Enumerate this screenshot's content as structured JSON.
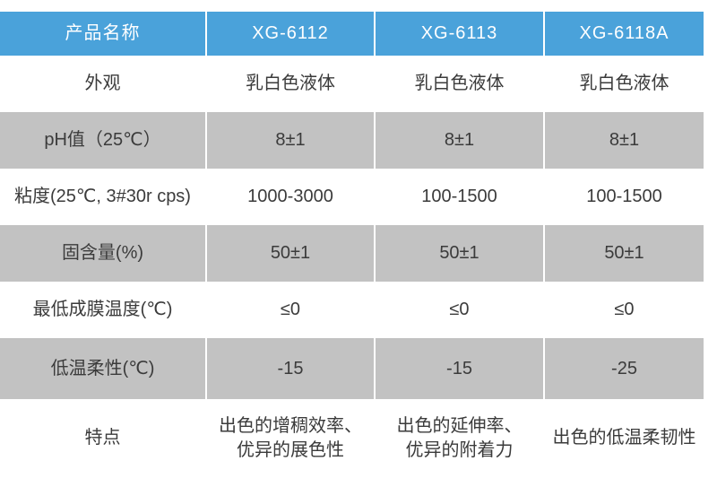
{
  "colors": {
    "header_bg": "#4aa2da",
    "header_text": "#ffffff",
    "shaded_row_bg": "#c2c2c2",
    "plain_row_bg": "#ffffff",
    "body_text": "#3b3b3b"
  },
  "table": {
    "header": {
      "label": "产品名称",
      "products": [
        "XG-6112",
        "XG-6113",
        "XG-6118A"
      ]
    },
    "rows": [
      {
        "label": "外观",
        "values": [
          "乳白色液体",
          "乳白色液体",
          "乳白色液体"
        ]
      },
      {
        "label": "pH值（25℃）",
        "values": [
          "8±1",
          "8±1",
          "8±1"
        ]
      },
      {
        "label": "粘度(25℃, 3#30r cps)",
        "values": [
          "1000-3000",
          "100-1500",
          "100-1500"
        ]
      },
      {
        "label": "固含量(%)",
        "values": [
          "50±1",
          "50±1",
          "50±1"
        ]
      },
      {
        "label": "最低成膜温度(℃)",
        "values": [
          "≤0",
          "≤0",
          "≤0"
        ]
      },
      {
        "label": "低温柔性(℃)",
        "values": [
          "-15",
          "-15",
          "-25"
        ]
      },
      {
        "label": "特点",
        "values": [
          "出色的增稠效率、\n优异的展色性",
          "出色的延伸率、\n优异的附着力",
          "出色的低温柔韧性"
        ]
      }
    ]
  }
}
